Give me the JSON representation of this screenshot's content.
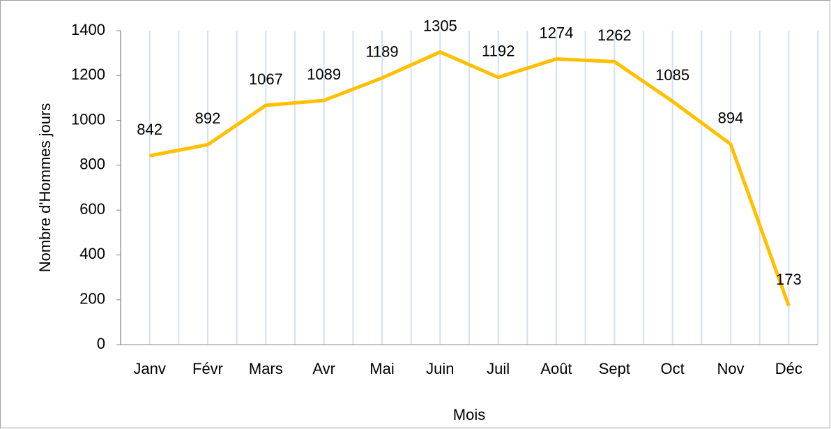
{
  "chart_data": {
    "type": "line",
    "x_label": "Mois",
    "y_label": "Nombre d'Hommes jours",
    "categories": [
      "Janv",
      "Févr",
      "Mars",
      "Avr",
      "Mai",
      "Juin",
      "Juil",
      "Août",
      "Sept",
      "Oct",
      "Nov",
      "Déc"
    ],
    "series": [
      {
        "name": "Nombre d'Hommes jours",
        "color": "#ffc000",
        "values": [
          842,
          892,
          1067,
          1089,
          1189,
          1305,
          1192,
          1274,
          1262,
          1085,
          894,
          173
        ]
      }
    ],
    "ylim": [
      0,
      1400
    ],
    "yticks": [
      0,
      200,
      400,
      600,
      800,
      1000,
      1200,
      1400
    ],
    "grid": true
  }
}
